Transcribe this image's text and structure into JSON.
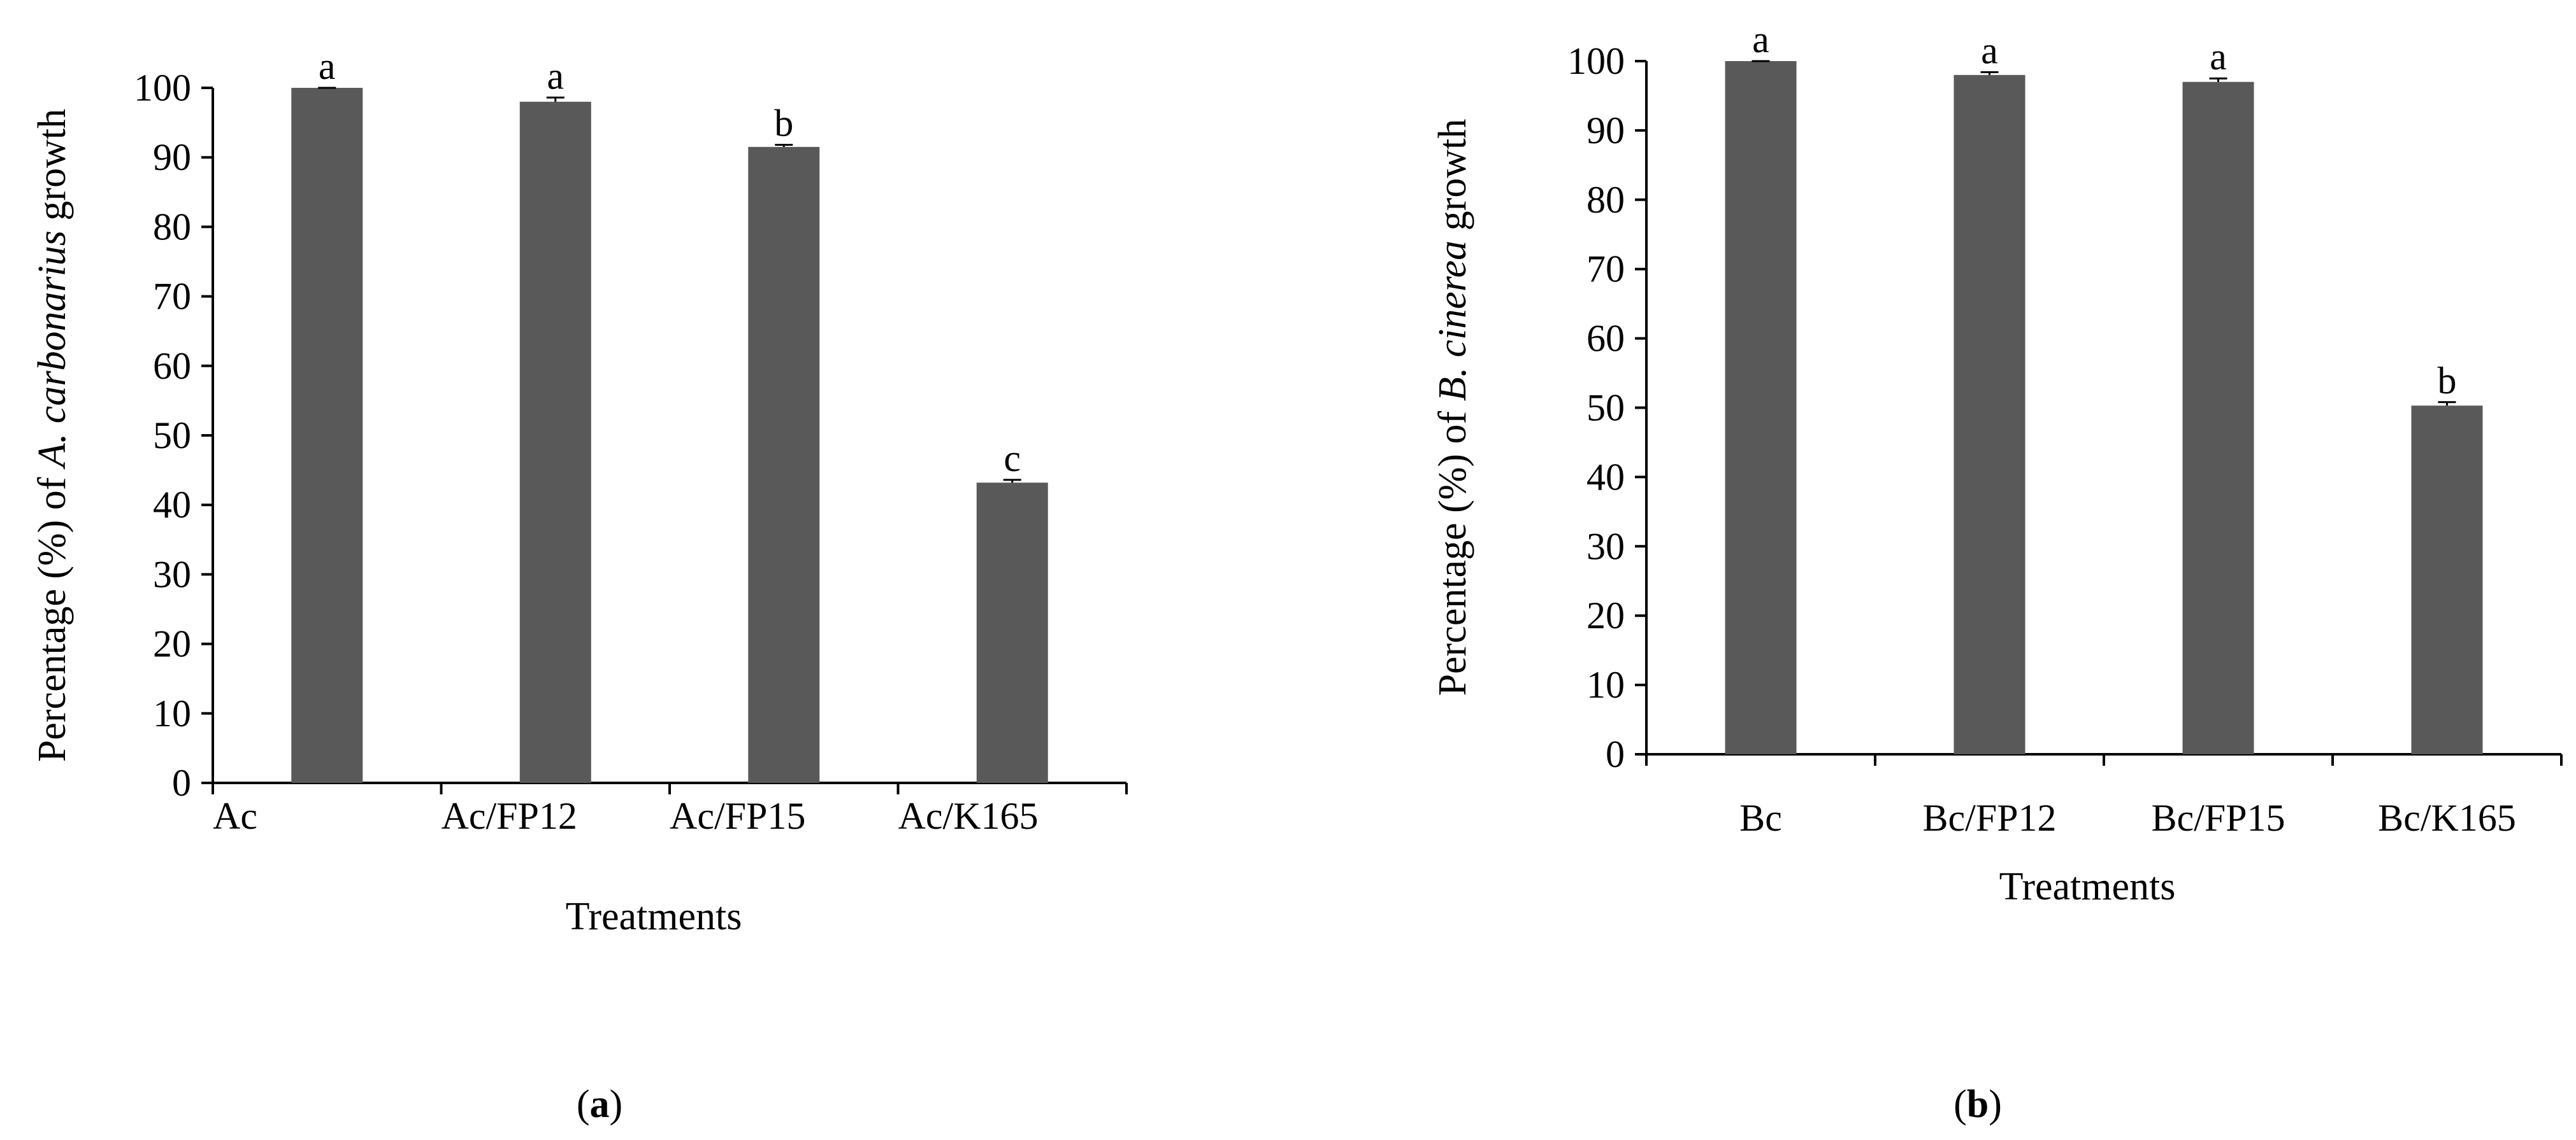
{
  "chart_data": [
    {
      "type": "bar",
      "panel_label": "a",
      "categories": [
        "Ac",
        "Ac/FP12",
        "Ac/FP15",
        "Ac/K165"
      ],
      "values": [
        100,
        98,
        91.5,
        43.2
      ],
      "error": [
        0,
        0.6,
        0.3,
        0.4
      ],
      "significance": [
        "a",
        "a",
        "b",
        "c"
      ],
      "xlabel": "Treatments",
      "ylabel": {
        "prefix": "Percentage (%) of ",
        "species": "A. carbonarius",
        "suffix": " growth"
      },
      "yticks": [
        "0",
        "10",
        "20",
        "30",
        "40",
        "50",
        "60",
        "70",
        "80",
        "90",
        "100"
      ],
      "ylim": [
        0,
        100
      ],
      "grid": false,
      "legend": "none",
      "bar_color": "#595959"
    },
    {
      "type": "bar",
      "panel_label": "b",
      "categories": [
        "Bc",
        "Bc/FP12",
        "Bc/FP15",
        "Bc/K165"
      ],
      "values": [
        100,
        98,
        97,
        50.3
      ],
      "error": [
        0,
        0.4,
        0.5,
        0.5
      ],
      "significance": [
        "a",
        "a",
        "a",
        "b"
      ],
      "xlabel": "Treatments",
      "ylabel": {
        "prefix": "Percentage (%) of ",
        "species": "B. cinerea",
        "suffix": " growth"
      },
      "yticks": [
        "0",
        "10",
        "20",
        "30",
        "40",
        "50",
        "60",
        "70",
        "80",
        "90",
        "100"
      ],
      "ylim": [
        0,
        100
      ],
      "grid": false,
      "legend": "none",
      "bar_color": "#595959"
    }
  ]
}
